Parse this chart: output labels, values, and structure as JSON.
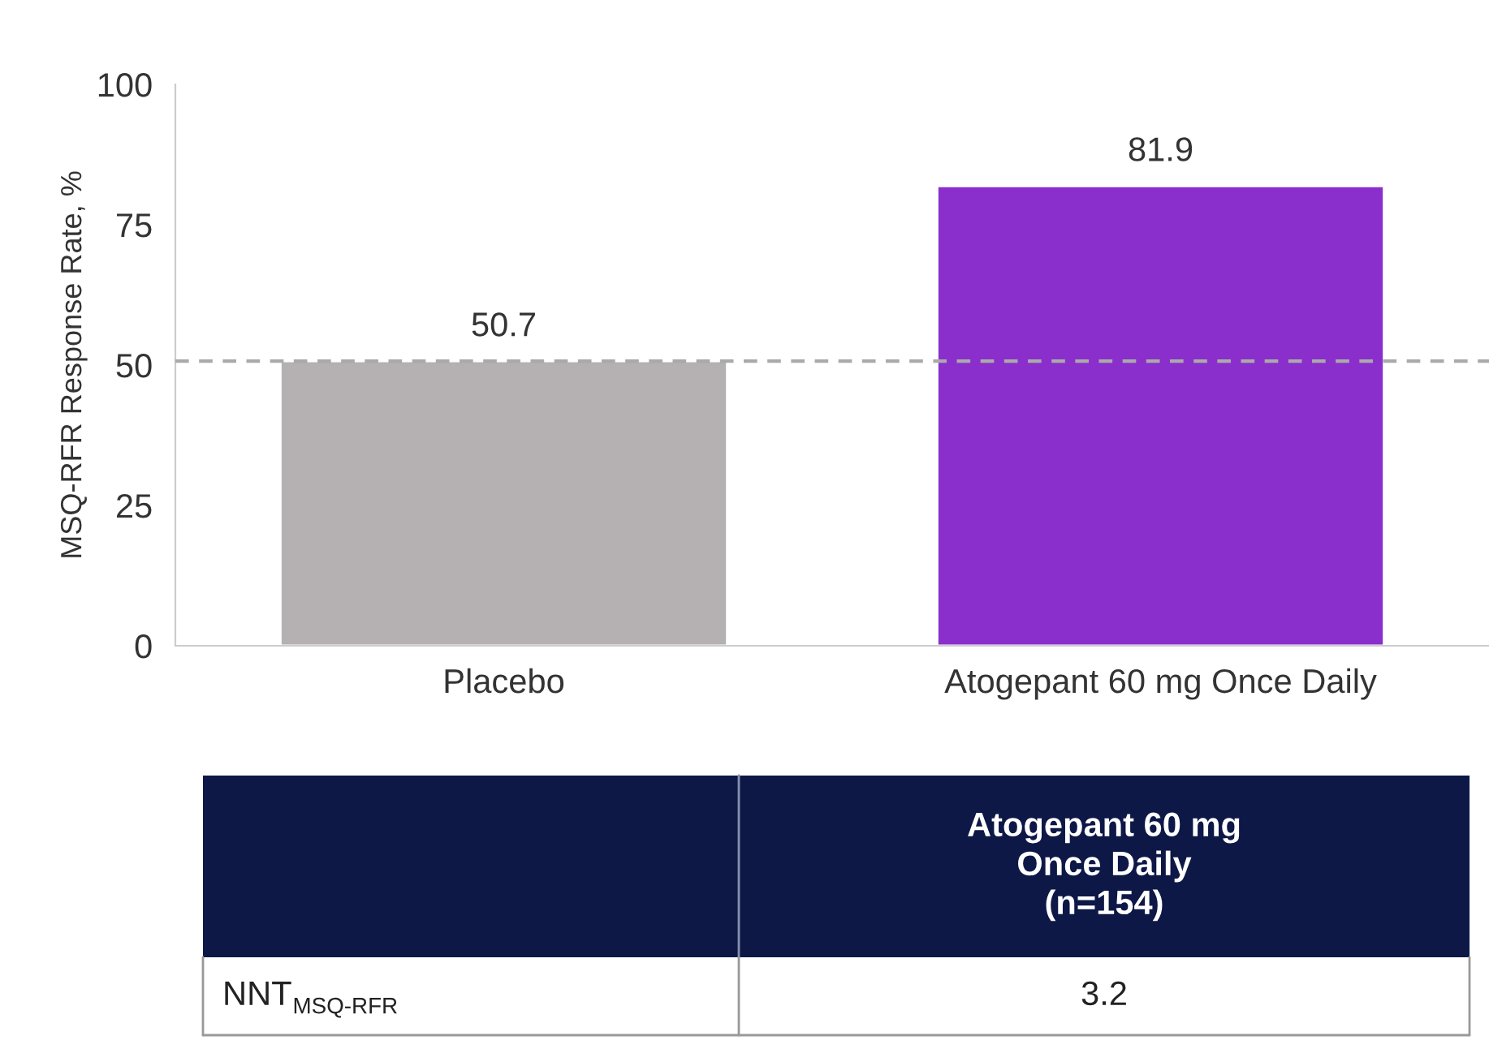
{
  "chart_data": {
    "type": "bar",
    "ylabel": "MSQ-RFR Response Rate, %",
    "categories": [
      "Placebo",
      "Atogepant 60 mg Once Daily"
    ],
    "values": [
      50.7,
      81.9
    ],
    "colors": [
      "#b5b0b1",
      "#8a2fcc"
    ],
    "ylim": [
      0,
      100
    ],
    "yticks": [
      0,
      25,
      50,
      75,
      100
    ],
    "data_labels": true,
    "grid": false,
    "ref_lines": [
      {
        "axis": "y",
        "value": 50.7,
        "color": "#aaaaaa",
        "line_style": "dashed"
      }
    ],
    "annotations": [
      "Atogepant 60 mg\nOnce Daily\n(n=154)",
      "NNT$_{MSQ-RFR}$",
      "3.2"
    ]
  }
}
